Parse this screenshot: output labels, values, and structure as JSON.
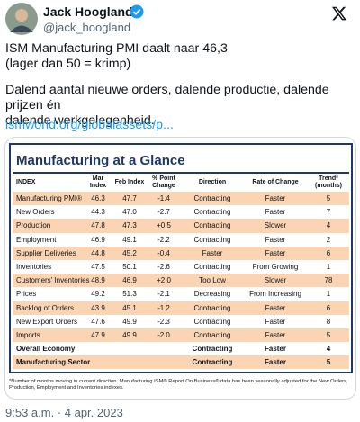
{
  "author": {
    "name": "Jack Hoogland",
    "handle": "@jack_hoogland"
  },
  "paragraphs": [
    [
      "ISM Manufacturing PMI daalt naar 46,3",
      "(lager dan 50 = krimp)"
    ],
    [
      "Dalend aantal nieuwe orders, dalende productie, dalende prijzen én",
      "dalende werkgelegenheid."
    ]
  ],
  "link": "ismworld.org/globalassets/p...",
  "table": {
    "title": "Manufacturing at a Glance",
    "header": [
      "INDEX",
      "Mar Index",
      "Feb Index",
      "% Point Change",
      "Direction",
      "Rate of Change",
      "Trend* (months)"
    ],
    "rows": [
      [
        "Manufacturing PMI®",
        "46.3",
        "47.7",
        "-1.4",
        "Contracting",
        "Faster",
        "5"
      ],
      [
        "New Orders",
        "44.3",
        "47.0",
        "-2.7",
        "Contracting",
        "Faster",
        "7"
      ],
      [
        "Production",
        "47.8",
        "47.3",
        "+0.5",
        "Contracting",
        "Slower",
        "4"
      ],
      [
        "Employment",
        "46.9",
        "49.1",
        "-2.2",
        "Contracting",
        "Faster",
        "2"
      ],
      [
        "Supplier Deliveries",
        "44.8",
        "45.2",
        "-0.4",
        "Faster",
        "Faster",
        "6"
      ],
      [
        "Inventories",
        "47.5",
        "50.1",
        "-2.6",
        "Contracting",
        "From Growing",
        "1"
      ],
      [
        "Customers' Inventories",
        "48.9",
        "46.9",
        "+2.0",
        "Too Low",
        "Slower",
        "78"
      ],
      [
        "Prices",
        "49.2",
        "51.3",
        "-2.1",
        "Decreasing",
        "From Increasing",
        "1"
      ],
      [
        "Backlog of Orders",
        "43.9",
        "45.1",
        "-1.2",
        "Contracting",
        "Faster",
        "6"
      ],
      [
        "New Export Orders",
        "47.6",
        "49.9",
        "-2.3",
        "Contracting",
        "Faster",
        "8"
      ],
      [
        "Imports",
        "47.9",
        "49.9",
        "-2.0",
        "Contracting",
        "Faster",
        "5"
      ],
      [
        "Overall Economy",
        null,
        null,
        null,
        "Contracting",
        "Faster",
        "4"
      ],
      [
        "Manufacturing Sector",
        null,
        null,
        null,
        "Contracting",
        "Faster",
        "5"
      ]
    ],
    "footnote": "*Number of months moving in current direction. Manufacturing ISM® Report On Business® data has been seasonally adjusted for the New Orders, Production, Employment and Inventories indexes."
  },
  "timestamp": "9:53 a.m. · 4 apr. 2023"
}
